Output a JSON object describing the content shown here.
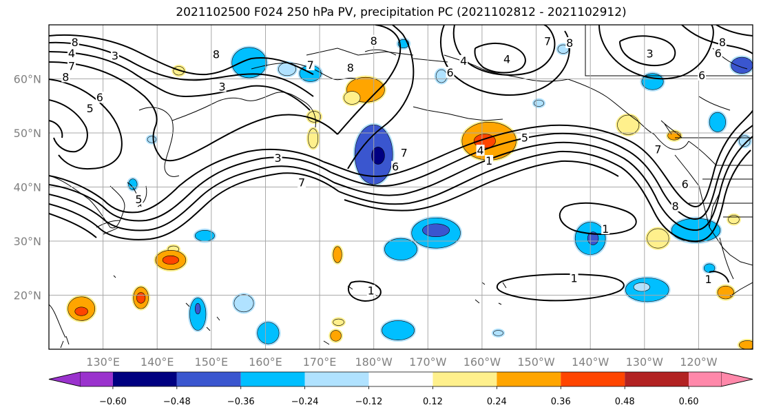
{
  "title": "2021102500 F024 250 hPa PV, precipitation PC (2021102812 - 2021102912)",
  "map": {
    "lon_range": [
      120,
      250
    ],
    "lat_range": [
      10,
      70
    ],
    "lon_ticks": [
      {
        "lon": 130,
        "label": "130°E"
      },
      {
        "lon": 140,
        "label": "140°E"
      },
      {
        "lon": 150,
        "label": "150°E"
      },
      {
        "lon": 160,
        "label": "160°E"
      },
      {
        "lon": 170,
        "label": "170°E"
      },
      {
        "lon": 180,
        "label": "180°W"
      },
      {
        "lon": 190,
        "label": "170°W"
      },
      {
        "lon": 200,
        "label": "160°W"
      },
      {
        "lon": 210,
        "label": "150°W"
      },
      {
        "lon": 220,
        "label": "140°W"
      },
      {
        "lon": 230,
        "label": "130°W"
      },
      {
        "lon": 240,
        "label": "120°W"
      }
    ],
    "lat_ticks": [
      {
        "lat": 20,
        "label": "20°N"
      },
      {
        "lat": 30,
        "label": "30°N"
      },
      {
        "lat": 40,
        "label": "40°N"
      },
      {
        "lat": 50,
        "label": "50°N"
      },
      {
        "lat": 60,
        "label": "60°N"
      }
    ],
    "contour_labels": [
      {
        "text": "8",
        "lon": 124.8,
        "lat": 66.8
      },
      {
        "text": "4",
        "lon": 124.2,
        "lat": 64.8
      },
      {
        "text": "3",
        "lon": 132.2,
        "lat": 64.3
      },
      {
        "text": "7",
        "lon": 124.2,
        "lat": 62.4
      },
      {
        "text": "8",
        "lon": 123.1,
        "lat": 60.4
      },
      {
        "text": "6",
        "lon": 129.4,
        "lat": 56.6
      },
      {
        "text": "5",
        "lon": 127.6,
        "lat": 54.6
      },
      {
        "text": "8",
        "lon": 150.9,
        "lat": 64.6
      },
      {
        "text": "7",
        "lon": 168.3,
        "lat": 62.6
      },
      {
        "text": "8",
        "lon": 175.7,
        "lat": 62.1
      },
      {
        "text": "3",
        "lon": 152.0,
        "lat": 58.6
      },
      {
        "text": "3",
        "lon": 162.3,
        "lat": 45.4
      },
      {
        "text": "7",
        "lon": 166.7,
        "lat": 40.9
      },
      {
        "text": "8",
        "lon": 180.0,
        "lat": 67.1
      },
      {
        "text": "7",
        "lon": 185.6,
        "lat": 46.4
      },
      {
        "text": "6",
        "lon": 184.0,
        "lat": 43.8
      },
      {
        "text": "1",
        "lon": 201.3,
        "lat": 44.9
      },
      {
        "text": "4",
        "lon": 199.7,
        "lat": 46.8
      },
      {
        "text": "5",
        "lon": 207.9,
        "lat": 49.2
      },
      {
        "text": "4",
        "lon": 196.6,
        "lat": 63.4
      },
      {
        "text": "6",
        "lon": 194.1,
        "lat": 61.2
      },
      {
        "text": "4",
        "lon": 204.6,
        "lat": 63.7
      },
      {
        "text": "7",
        "lon": 212.1,
        "lat": 67.0
      },
      {
        "text": "8",
        "lon": 216.2,
        "lat": 66.7
      },
      {
        "text": "3",
        "lon": 231.0,
        "lat": 64.7
      },
      {
        "text": "6",
        "lon": 243.6,
        "lat": 64.8
      },
      {
        "text": "8",
        "lon": 244.4,
        "lat": 66.8
      },
      {
        "text": "6",
        "lon": 240.6,
        "lat": 60.7
      },
      {
        "text": "7",
        "lon": 232.5,
        "lat": 47.0
      },
      {
        "text": "6",
        "lon": 237.5,
        "lat": 40.6
      },
      {
        "text": "8",
        "lon": 235.7,
        "lat": 36.5
      },
      {
        "text": "1",
        "lon": 222.8,
        "lat": 32.3
      },
      {
        "text": "1",
        "lon": 217.0,
        "lat": 23.2
      },
      {
        "text": "1",
        "lon": 179.5,
        "lat": 20.9
      },
      {
        "text": "1",
        "lon": 241.8,
        "lat": 23.0
      },
      {
        "text": "5",
        "lon": 136.6,
        "lat": 37.8
      }
    ]
  },
  "colorbar": {
    "colors": [
      "#9a32cd",
      "#000080",
      "#3a56cf",
      "#00bfff",
      "#b0e2ff",
      "#ffffff",
      "#fff08c",
      "#ffa500",
      "#ff4500",
      "#b22222",
      "#ff88aa"
    ],
    "boundaries": [
      "−0.60",
      "−0.48",
      "−0.36",
      "−0.24",
      "−0.12",
      "0.12",
      "0.24",
      "0.36",
      "0.48",
      "0.60"
    ],
    "extend": "both"
  },
  "precip_blobs": [
    {
      "lon": 157.0,
      "lat": 63.0,
      "rlon": 3.2,
      "rlat": 2.8,
      "level": -0.36
    },
    {
      "lon": 168.3,
      "lat": 61.0,
      "rlon": 2.0,
      "rlat": 1.5,
      "level": -0.36
    },
    {
      "lon": 164.0,
      "lat": 61.8,
      "rlon": 1.6,
      "rlat": 1.2,
      "level": -0.24
    },
    {
      "lon": 178.5,
      "lat": 58.0,
      "rlon": 3.5,
      "rlat": 2.3,
      "level": 0.36
    },
    {
      "lon": 176.0,
      "lat": 56.5,
      "rlon": 1.5,
      "rlat": 1.2,
      "level": 0.24
    },
    {
      "lon": 169.0,
      "lat": 53.0,
      "rlon": 1.2,
      "rlat": 1.0,
      "level": 0.24
    },
    {
      "lon": 168.8,
      "lat": 49.0,
      "rlon": 0.9,
      "rlat": 1.8,
      "level": 0.24
    },
    {
      "lon": 180.0,
      "lat": 46.0,
      "rlon": 3.5,
      "rlat": 5.5,
      "level": -0.48
    },
    {
      "lon": 180.8,
      "lat": 45.8,
      "rlon": 1.2,
      "rlat": 1.6,
      "level": -0.6
    },
    {
      "lon": 201.3,
      "lat": 48.5,
      "rlon": 5.0,
      "rlat": 3.5,
      "level": 0.36
    },
    {
      "lon": 200.5,
      "lat": 48.5,
      "rlon": 2.0,
      "rlat": 1.3,
      "level": 0.48
    },
    {
      "lon": 139.0,
      "lat": 48.8,
      "rlon": 0.8,
      "rlat": 0.6,
      "level": -0.24
    },
    {
      "lon": 135.5,
      "lat": 40.5,
      "rlon": 0.8,
      "rlat": 1.0,
      "level": -0.36
    },
    {
      "lon": 144.0,
      "lat": 61.5,
      "rlon": 1.0,
      "rlat": 0.8,
      "level": 0.24
    },
    {
      "lon": 192.5,
      "lat": 60.5,
      "rlon": 1.0,
      "rlat": 1.2,
      "level": -0.24
    },
    {
      "lon": 210.5,
      "lat": 55.5,
      "rlon": 0.9,
      "rlat": 0.6,
      "level": -0.24
    },
    {
      "lon": 231.5,
      "lat": 59.5,
      "rlon": 2.0,
      "rlat": 1.5,
      "level": -0.36
    },
    {
      "lon": 227.0,
      "lat": 51.5,
      "rlon": 2.0,
      "rlat": 1.8,
      "level": 0.24
    },
    {
      "lon": 235.5,
      "lat": 49.5,
      "rlon": 1.2,
      "rlat": 0.8,
      "level": 0.36
    },
    {
      "lon": 243.5,
      "lat": 52.0,
      "rlon": 1.5,
      "rlat": 1.8,
      "level": -0.36
    },
    {
      "lon": 248.0,
      "lat": 62.5,
      "rlon": 2.0,
      "rlat": 1.5,
      "level": -0.48
    },
    {
      "lon": 248.5,
      "lat": 48.5,
      "rlon": 1.0,
      "rlat": 1.0,
      "level": -0.24
    },
    {
      "lon": 239.5,
      "lat": 32.0,
      "rlon": 4.5,
      "rlat": 2.2,
      "level": -0.36
    },
    {
      "lon": 246.5,
      "lat": 34.0,
      "rlon": 1.0,
      "rlat": 0.8,
      "level": 0.24
    },
    {
      "lon": 232.5,
      "lat": 30.5,
      "rlon": 2.0,
      "rlat": 1.8,
      "level": 0.24
    },
    {
      "lon": 220.0,
      "lat": 30.5,
      "rlon": 2.8,
      "rlat": 3.0,
      "level": -0.36
    },
    {
      "lon": 220.5,
      "lat": 30.5,
      "rlon": 1.0,
      "rlat": 1.2,
      "level": -0.48
    },
    {
      "lon": 191.5,
      "lat": 31.5,
      "rlon": 4.5,
      "rlat": 2.8,
      "level": -0.36
    },
    {
      "lon": 185.0,
      "lat": 28.5,
      "rlon": 3.0,
      "rlat": 2.0,
      "level": -0.36
    },
    {
      "lon": 191.5,
      "lat": 32.0,
      "rlon": 2.5,
      "rlat": 1.2,
      "level": -0.48
    },
    {
      "lon": 148.8,
      "lat": 31.0,
      "rlon": 1.8,
      "rlat": 1.0,
      "level": -0.36
    },
    {
      "lon": 143.0,
      "lat": 28.5,
      "rlon": 1.0,
      "rlat": 0.6,
      "level": 0.24
    },
    {
      "lon": 142.5,
      "lat": 26.5,
      "rlon": 2.8,
      "rlat": 1.8,
      "level": 0.36
    },
    {
      "lon": 142.5,
      "lat": 26.5,
      "rlon": 1.5,
      "rlat": 0.8,
      "level": 0.48
    },
    {
      "lon": 137.0,
      "lat": 19.5,
      "rlon": 1.4,
      "rlat": 2.0,
      "level": 0.36
    },
    {
      "lon": 137.0,
      "lat": 19.5,
      "rlon": 0.8,
      "rlat": 1.0,
      "level": 0.48
    },
    {
      "lon": 126.0,
      "lat": 17.5,
      "rlon": 2.5,
      "rlat": 2.2,
      "level": 0.36
    },
    {
      "lon": 126.0,
      "lat": 17.0,
      "rlon": 1.2,
      "rlat": 0.8,
      "level": 0.48
    },
    {
      "lon": 147.5,
      "lat": 16.5,
      "rlon": 1.5,
      "rlat": 3.0,
      "level": -0.36
    },
    {
      "lon": 147.5,
      "lat": 17.5,
      "rlon": 0.5,
      "rlat": 1.0,
      "level": -0.48
    },
    {
      "lon": 156.0,
      "lat": 18.5,
      "rlon": 1.8,
      "rlat": 1.6,
      "level": -0.24
    },
    {
      "lon": 160.5,
      "lat": 13.0,
      "rlon": 2.0,
      "rlat": 2.0,
      "level": -0.36
    },
    {
      "lon": 184.5,
      "lat": 13.5,
      "rlon": 3.0,
      "rlat": 1.8,
      "level": -0.36
    },
    {
      "lon": 173.5,
      "lat": 15.0,
      "rlon": 1.0,
      "rlat": 0.6,
      "level": 0.24
    },
    {
      "lon": 173.0,
      "lat": 12.5,
      "rlon": 1.0,
      "rlat": 1.0,
      "level": 0.36
    },
    {
      "lon": 173.3,
      "lat": 27.5,
      "rlon": 0.8,
      "rlat": 1.5,
      "level": 0.36
    },
    {
      "lon": 230.5,
      "lat": 21.0,
      "rlon": 4.0,
      "rlat": 2.2,
      "level": -0.36
    },
    {
      "lon": 229.5,
      "lat": 21.5,
      "rlon": 1.5,
      "rlat": 0.8,
      "level": -0.24
    },
    {
      "lon": 245.0,
      "lat": 20.5,
      "rlon": 1.5,
      "rlat": 1.2,
      "level": 0.36
    },
    {
      "lon": 242.0,
      "lat": 25.0,
      "rlon": 1.0,
      "rlat": 0.8,
      "level": -0.36
    },
    {
      "lon": 185.5,
      "lat": 66.5,
      "rlon": 1.0,
      "rlat": 0.8,
      "level": -0.36
    },
    {
      "lon": 215.0,
      "lat": 65.5,
      "rlon": 1.0,
      "rlat": 0.8,
      "level": -0.24
    },
    {
      "lon": 249.0,
      "lat": 10.8,
      "rlon": 1.5,
      "rlat": 0.8,
      "level": 0.36
    },
    {
      "lon": 203.0,
      "lat": 13.0,
      "rlon": 0.9,
      "rlat": 0.5,
      "level": -0.24
    }
  ]
}
